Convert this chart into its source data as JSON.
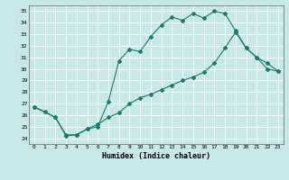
{
  "xlabel": "Humidex (Indice chaleur)",
  "bg_color": "#c8e8e8",
  "grid_color": "#ffffff",
  "line_color": "#1a7a6a",
  "xlim": [
    -0.5,
    23.5
  ],
  "ylim": [
    23.5,
    35.5
  ],
  "yticks": [
    24,
    25,
    26,
    27,
    28,
    29,
    30,
    31,
    32,
    33,
    34,
    35
  ],
  "xticks": [
    0,
    1,
    2,
    3,
    4,
    5,
    6,
    7,
    8,
    9,
    10,
    11,
    12,
    13,
    14,
    15,
    16,
    17,
    18,
    19,
    20,
    21,
    22,
    23
  ],
  "line1_x": [
    0,
    1,
    2,
    3,
    4,
    5,
    6,
    7,
    8,
    9,
    10,
    11,
    12,
    13,
    14,
    15,
    16,
    17,
    18,
    19,
    20,
    21,
    22,
    23
  ],
  "line1_y": [
    26.7,
    26.3,
    25.8,
    24.3,
    24.3,
    24.8,
    25.0,
    27.2,
    30.7,
    31.7,
    31.5,
    32.8,
    33.8,
    34.5,
    34.2,
    34.8,
    34.4,
    35.0,
    34.8,
    33.3,
    31.8,
    31.0,
    30.5,
    29.8
  ],
  "line2_x": [
    0,
    2,
    3,
    4,
    5,
    6,
    7,
    8,
    9,
    10,
    11,
    12,
    13,
    14,
    15,
    16,
    17,
    18,
    19,
    20,
    21,
    22,
    23
  ],
  "line2_y": [
    26.7,
    25.8,
    24.2,
    24.3,
    24.8,
    25.2,
    25.8,
    26.2,
    27.0,
    27.5,
    27.8,
    28.2,
    28.6,
    29.0,
    29.3,
    29.7,
    30.5,
    31.8,
    33.2,
    31.8,
    31.0,
    30.0,
    29.8
  ]
}
